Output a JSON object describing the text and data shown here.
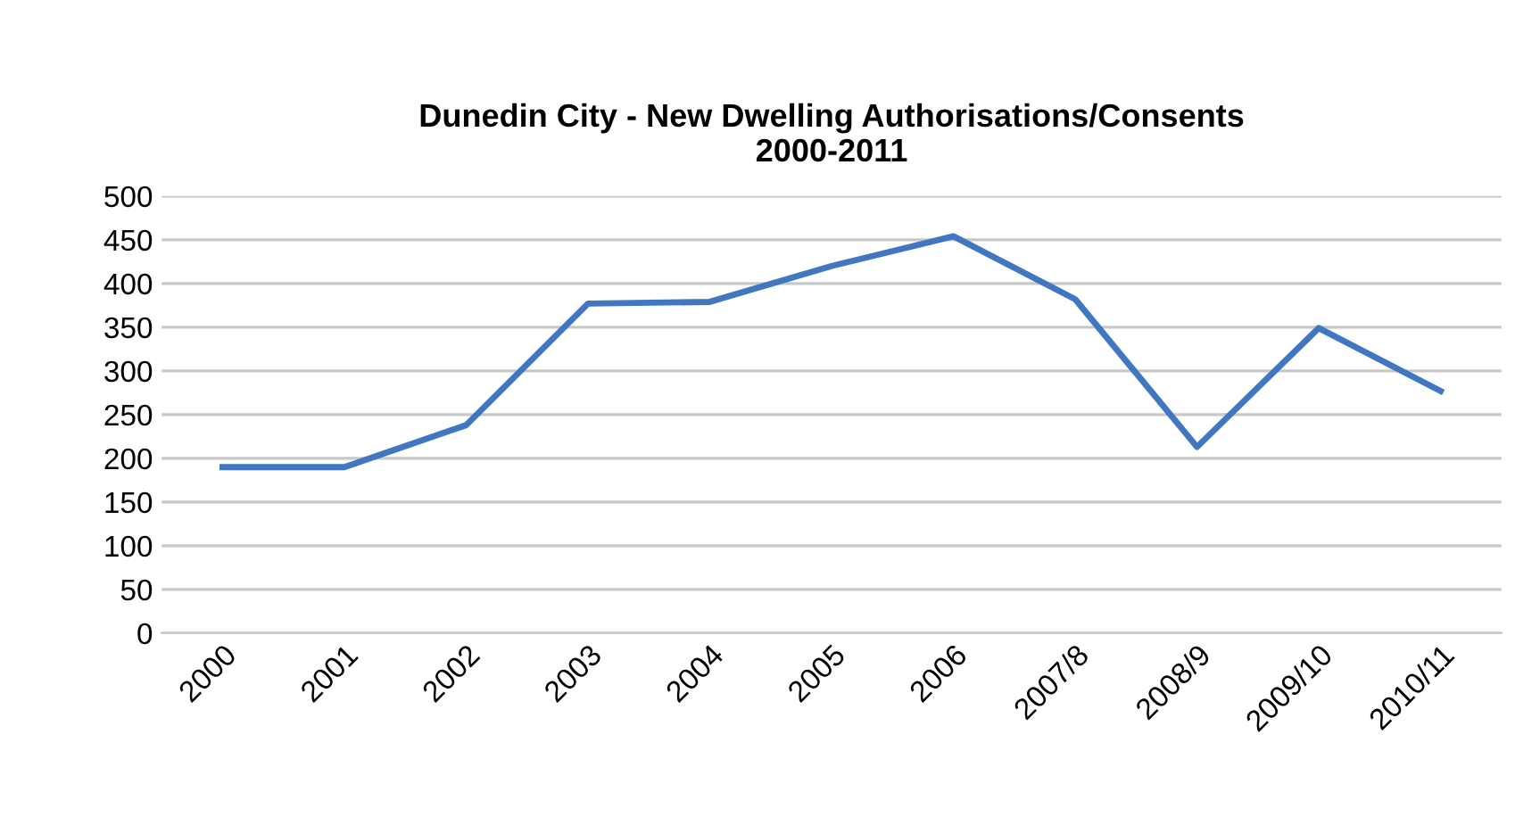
{
  "chart_data": {
    "type": "line",
    "title": "Dunedin City - New Dwelling Authorisations/Consents\n2000-2011",
    "categories": [
      "2000",
      "2001",
      "2002",
      "2003",
      "2004",
      "2005",
      "2006",
      "2007/8",
      "2008/9",
      "2009/10",
      "2010/11"
    ],
    "series": [
      {
        "color": "#4177c1",
        "values": [
          190,
          190,
          238,
          377,
          379,
          420,
          454,
          382,
          213,
          349,
          277
        ]
      }
    ],
    "ylim": [
      0,
      500
    ],
    "yticks": [
      0,
      50,
      100,
      150,
      200,
      250,
      300,
      350,
      400,
      450,
      500
    ],
    "grid": "y",
    "legend": false,
    "marker": "none",
    "line_style": "solid"
  }
}
